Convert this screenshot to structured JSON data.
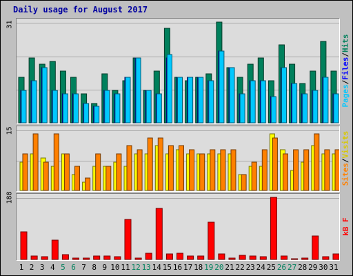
{
  "title": "Daily usage for August 2017",
  "colors": {
    "hits": "#00805c",
    "files": "#0000ff",
    "pages": "#00c8ff",
    "visits": "#ffff00",
    "sites": "#ff8000",
    "kbytes": "#ff0000",
    "weekday_label": "#000000",
    "weekend_label": "#00805c"
  },
  "labels": {
    "hits_axis_max": "31",
    "visits_axis_max": "15",
    "kb_axis_max": "188",
    "pages": "Pages",
    "files": "Files",
    "hits": "Hits",
    "sites": "Sites",
    "visits": "Visits",
    "kbytes": "kB F",
    "sep": "/"
  },
  "chart_data": [
    {
      "type": "bar",
      "name": "Hits / Files / Pages",
      "categories": [
        "1",
        "2",
        "3",
        "4",
        "5",
        "6",
        "7",
        "8",
        "9",
        "10",
        "11",
        "12",
        "13",
        "14",
        "15",
        "16",
        "17",
        "18",
        "19",
        "20",
        "21",
        "22",
        "23",
        "24",
        "25",
        "26",
        "27",
        "28",
        "29",
        "30",
        "31"
      ],
      "ylim": [
        0,
        31
      ],
      "series": [
        {
          "name": "Hits",
          "values": [
            14,
            20,
            18,
            19,
            16,
            14,
            9,
            6,
            15,
            10,
            13,
            20,
            10,
            16,
            29,
            14,
            13,
            14,
            15,
            31,
            17,
            14,
            18,
            20,
            13,
            24,
            18,
            12,
            16,
            25,
            16
          ]
        },
        {
          "name": "Files",
          "values": [
            10,
            13,
            17,
            10,
            9,
            9,
            6,
            5,
            10,
            9,
            14,
            20,
            10,
            9,
            20,
            14,
            14,
            14,
            13,
            22,
            17,
            9,
            13,
            13,
            8,
            17,
            12,
            9,
            10,
            14,
            9
          ]
        },
        {
          "name": "Pages",
          "values": [
            10,
            13,
            17,
            10,
            9,
            9,
            6,
            5,
            10,
            9,
            14,
            20,
            10,
            9,
            21,
            14,
            14,
            14,
            13,
            22,
            17,
            9,
            13,
            13,
            8,
            17,
            12,
            9,
            10,
            14,
            9
          ]
        }
      ],
      "weekend_days": [
        "5",
        "6",
        "12",
        "13",
        "19",
        "20",
        "26",
        "27"
      ]
    },
    {
      "type": "bar",
      "name": "Visits / Sites",
      "categories": [
        "1",
        "2",
        "3",
        "4",
        "5",
        "6",
        "7",
        "8",
        "9",
        "10",
        "11",
        "12",
        "13",
        "14",
        "15",
        "16",
        "17",
        "18",
        "19",
        "20",
        "21",
        "22",
        "23",
        "24",
        "25",
        "26",
        "27",
        "28",
        "29",
        "30",
        "31"
      ],
      "ylim": [
        0,
        15
      ],
      "series": [
        {
          "name": "Visits",
          "values": [
            7,
            9,
            8,
            6,
            9,
            4,
            2,
            6,
            6,
            7,
            6,
            9,
            9,
            11,
            9,
            10,
            9,
            9,
            9,
            9,
            9,
            4,
            6,
            6,
            14,
            10,
            5,
            7,
            11,
            9,
            9
          ]
        },
        {
          "name": "Sites",
          "values": [
            9,
            14,
            7,
            14,
            9,
            6,
            3,
            9,
            6,
            9,
            11,
            10,
            13,
            13,
            11,
            11,
            10,
            9,
            10,
            10,
            10,
            4,
            7,
            10,
            13,
            9,
            10,
            10,
            14,
            10,
            10
          ]
        }
      ]
    },
    {
      "type": "bar",
      "name": "kB F",
      "categories": [
        "1",
        "2",
        "3",
        "4",
        "5",
        "6",
        "7",
        "8",
        "9",
        "10",
        "11",
        "12",
        "13",
        "14",
        "15",
        "16",
        "17",
        "18",
        "19",
        "20",
        "21",
        "22",
        "23",
        "24",
        "25",
        "26",
        "27",
        "28",
        "29",
        "30",
        "31"
      ],
      "ylim": [
        0,
        188
      ],
      "series": [
        {
          "name": "kB F",
          "values": [
            84,
            10,
            8,
            58,
            14,
            4,
            4,
            10,
            10,
            8,
            122,
            4,
            18,
            154,
            16,
            18,
            10,
            10,
            112,
            16,
            4,
            12,
            10,
            8,
            188,
            10,
            2,
            4,
            72,
            8,
            16
          ]
        }
      ]
    }
  ],
  "legend": "right side, vertical"
}
